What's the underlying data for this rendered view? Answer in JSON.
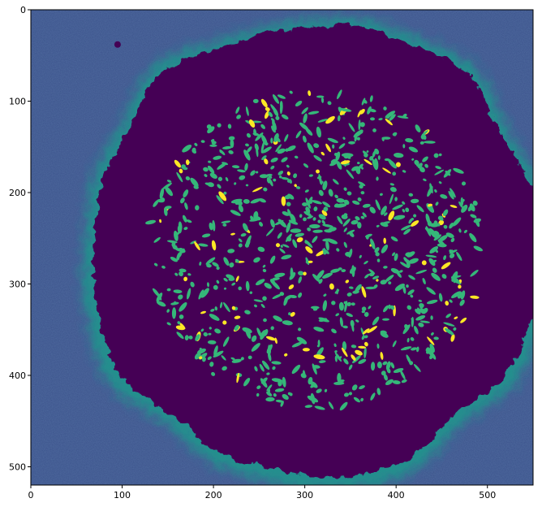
{
  "chart_data": {
    "type": "heatmap",
    "title": "",
    "xlabel": "",
    "ylabel": "",
    "image_width": 550,
    "image_height": 520,
    "xlim": [
      0,
      550
    ],
    "ylim": [
      520,
      0
    ],
    "x_ticks": [
      "0",
      "100",
      "200",
      "300",
      "400",
      "500"
    ],
    "y_ticks": [
      "0",
      "100",
      "200",
      "300",
      "400",
      "500"
    ],
    "colormap": "viridis",
    "colors": {
      "background": "#3b528b",
      "disk": "#440154",
      "halo": "#21908d",
      "feature_mid": "#35b779",
      "feature_high": "#fde725"
    },
    "grid": false,
    "legend": "none"
  }
}
